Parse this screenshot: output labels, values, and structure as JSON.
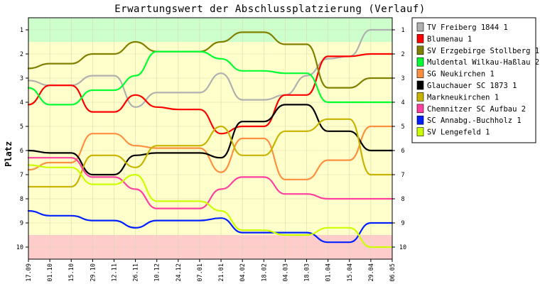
{
  "chart_data": {
    "type": "line",
    "title": "Erwartungswert der Abschlussplatzierung (Verlauf)",
    "ylabel": "Platz",
    "xlabel": "",
    "ylim": [
      0.5,
      10.5
    ],
    "y_inverted": true,
    "y_ticks": [
      1,
      2,
      3,
      4,
      5,
      6,
      7,
      8,
      9,
      10
    ],
    "categories": [
      "17.09",
      "01.10",
      "15.10",
      "29.10",
      "12.11",
      "26.11",
      "10.12",
      "24.12",
      "07.01",
      "21.01",
      "04.02",
      "18.02",
      "04.03",
      "18.03",
      "01.04",
      "15.04",
      "29.04",
      "06.05"
    ],
    "bands": [
      {
        "from": 0.5,
        "to": 1.5,
        "color": "#ccffcc"
      },
      {
        "from": 1.5,
        "to": 9.5,
        "color": "#ffffcc"
      },
      {
        "from": 9.5,
        "to": 10.5,
        "color": "#ffcccc"
      }
    ],
    "legend_position": "right",
    "series": [
      {
        "name": "TV Freiberg 1844 1",
        "color": "#b0b0b0",
        "values": [
          3.1,
          3.3,
          3.3,
          2.9,
          2.9,
          4.2,
          3.6,
          3.6,
          3.6,
          2.8,
          3.9,
          3.9,
          3.7,
          2.9,
          2.2,
          2.1,
          1.0,
          1.0
        ]
      },
      {
        "name": "Blumenau 1",
        "color": "#ff0000",
        "values": [
          4.1,
          3.3,
          3.3,
          4.4,
          4.4,
          3.7,
          4.2,
          4.3,
          4.3,
          5.3,
          5.0,
          5.0,
          3.7,
          3.7,
          2.1,
          2.1,
          2.0,
          2.0
        ]
      },
      {
        "name": "SV Erzgebirge Stollberg 1",
        "color": "#808000",
        "values": [
          2.6,
          2.4,
          2.4,
          2.0,
          2.0,
          1.5,
          1.9,
          1.9,
          1.9,
          1.5,
          1.1,
          1.1,
          1.6,
          1.6,
          3.4,
          3.4,
          3.0,
          3.0
        ]
      },
      {
        "name": "Muldental Wilkau-Haßlau 2",
        "color": "#00ff33",
        "values": [
          3.4,
          4.1,
          4.1,
          3.5,
          3.5,
          2.9,
          1.9,
          1.9,
          1.9,
          2.2,
          2.7,
          2.7,
          2.8,
          2.8,
          4.0,
          4.0,
          4.0,
          4.0
        ]
      },
      {
        "name": "SG Neukirchen 1",
        "color": "#ff9040",
        "values": [
          6.8,
          6.5,
          6.5,
          5.3,
          5.3,
          5.8,
          5.9,
          5.9,
          5.9,
          6.9,
          5.5,
          5.5,
          7.2,
          7.2,
          6.4,
          6.4,
          5.0,
          5.0
        ]
      },
      {
        "name": "Glauchauer SC 1873 1",
        "color": "#000000",
        "values": [
          6.0,
          6.1,
          6.1,
          7.0,
          7.0,
          6.2,
          6.1,
          6.1,
          6.1,
          6.3,
          4.8,
          4.8,
          4.1,
          4.1,
          5.2,
          5.2,
          6.0,
          6.0
        ]
      },
      {
        "name": "Markneukirchen 1",
        "color": "#c8b400",
        "values": [
          7.5,
          7.5,
          7.5,
          6.2,
          6.2,
          6.7,
          5.8,
          5.8,
          5.8,
          5.0,
          6.2,
          6.2,
          5.2,
          5.2,
          4.7,
          4.7,
          7.0,
          7.0
        ]
      },
      {
        "name": "Chemnitzer SC Aufbau 2",
        "color": "#ff40a0",
        "values": [
          6.3,
          6.3,
          6.3,
          7.1,
          7.1,
          7.6,
          8.4,
          8.4,
          8.4,
          7.6,
          7.1,
          7.1,
          7.8,
          7.8,
          8.0,
          8.0,
          8.0,
          8.0
        ]
      },
      {
        "name": "SC Annabg.-Buchholz 1",
        "color": "#0020ff",
        "values": [
          8.5,
          8.7,
          8.7,
          8.9,
          8.9,
          9.2,
          8.9,
          8.9,
          8.9,
          8.8,
          9.4,
          9.4,
          9.4,
          9.4,
          9.8,
          9.8,
          9.0,
          9.0
        ]
      },
      {
        "name": "SV Lengefeld 1",
        "color": "#ccff00",
        "values": [
          6.6,
          6.7,
          6.7,
          7.4,
          7.4,
          7.0,
          8.1,
          8.1,
          8.1,
          8.5,
          9.3,
          9.3,
          9.5,
          9.5,
          9.2,
          9.2,
          10.0,
          10.0
        ]
      }
    ]
  }
}
